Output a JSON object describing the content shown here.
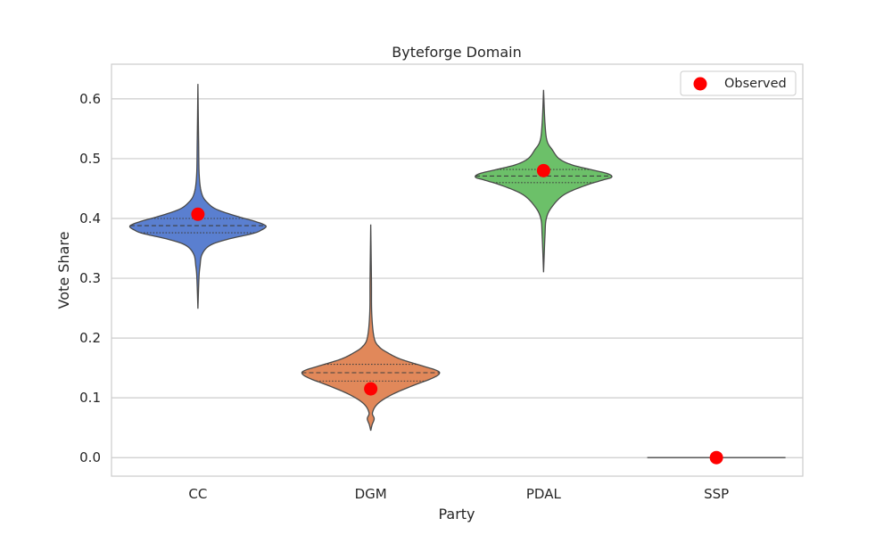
{
  "chart_data": {
    "type": "violin",
    "title": "Byteforge Domain",
    "xlabel": "Party",
    "ylabel": "Vote Share",
    "ylim": [
      -0.031,
      0.658
    ],
    "yticks": [
      0.0,
      0.1,
      0.2,
      0.3,
      0.4,
      0.5,
      0.6
    ],
    "ytick_labels": [
      "0.0",
      "0.1",
      "0.2",
      "0.3",
      "0.4",
      "0.5",
      "0.6"
    ],
    "grid": true,
    "legend": {
      "placement": "top-right",
      "entries": [
        {
          "label": "Observed",
          "color": "#ff0000",
          "marker": "circle"
        }
      ]
    },
    "categories": [
      "CC",
      "DGM",
      "PDAL",
      "SSP"
    ],
    "violins": [
      {
        "category": "CC",
        "color": "#5a7fd0",
        "min": 0.249,
        "max": 0.625,
        "median": 0.388,
        "q1": 0.376,
        "q3": 0.4,
        "observed": 0.407,
        "profile": [
          [
            0.249,
            0.0
          ],
          [
            0.3,
            0.003
          ],
          [
            0.32,
            0.006
          ],
          [
            0.34,
            0.012
          ],
          [
            0.355,
            0.035
          ],
          [
            0.365,
            0.085
          ],
          [
            0.375,
            0.16
          ],
          [
            0.381,
            0.185
          ],
          [
            0.386,
            0.197
          ],
          [
            0.39,
            0.19
          ],
          [
            0.396,
            0.16
          ],
          [
            0.405,
            0.105
          ],
          [
            0.415,
            0.055
          ],
          [
            0.425,
            0.03
          ],
          [
            0.44,
            0.012
          ],
          [
            0.47,
            0.004
          ],
          [
            0.53,
            0.002
          ],
          [
            0.625,
            0.0
          ]
        ]
      },
      {
        "category": "DGM",
        "color": "#e1885a",
        "min": 0.045,
        "max": 0.39,
        "median": 0.142,
        "q1": 0.128,
        "q3": 0.156,
        "observed": 0.115,
        "profile": [
          [
            0.045,
            0.0
          ],
          [
            0.055,
            0.004
          ],
          [
            0.065,
            0.01
          ],
          [
            0.075,
            0.005
          ],
          [
            0.09,
            0.02
          ],
          [
            0.105,
            0.06
          ],
          [
            0.12,
            0.12
          ],
          [
            0.132,
            0.175
          ],
          [
            0.14,
            0.198
          ],
          [
            0.146,
            0.19
          ],
          [
            0.155,
            0.14
          ],
          [
            0.165,
            0.085
          ],
          [
            0.175,
            0.05
          ],
          [
            0.185,
            0.025
          ],
          [
            0.2,
            0.01
          ],
          [
            0.24,
            0.003
          ],
          [
            0.3,
            0.002
          ],
          [
            0.39,
            0.0
          ]
        ]
      },
      {
        "category": "PDAL",
        "color": "#6cc069",
        "min": 0.31,
        "max": 0.615,
        "median": 0.471,
        "q1": 0.46,
        "q3": 0.482,
        "observed": 0.48,
        "profile": [
          [
            0.31,
            0.0
          ],
          [
            0.37,
            0.004
          ],
          [
            0.4,
            0.008
          ],
          [
            0.42,
            0.025
          ],
          [
            0.44,
            0.06
          ],
          [
            0.455,
            0.12
          ],
          [
            0.464,
            0.17
          ],
          [
            0.469,
            0.197
          ],
          [
            0.475,
            0.185
          ],
          [
            0.482,
            0.135
          ],
          [
            0.49,
            0.08
          ],
          [
            0.5,
            0.045
          ],
          [
            0.515,
            0.025
          ],
          [
            0.53,
            0.01
          ],
          [
            0.56,
            0.004
          ],
          [
            0.615,
            0.0
          ]
        ]
      },
      {
        "category": "SSP",
        "color": "#c44e52",
        "min": 0.0,
        "max": 0.0,
        "median": 0.0,
        "observed": 0.0,
        "flat_halfwidth": 0.2,
        "profile": []
      }
    ]
  }
}
